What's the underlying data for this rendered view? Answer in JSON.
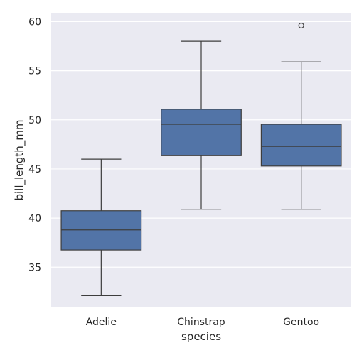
{
  "chart_data": {
    "type": "box",
    "xlabel": "species",
    "ylabel": "bill_length_mm",
    "ylim": [
      30.9,
      60.9
    ],
    "yticks": [
      35,
      40,
      45,
      50,
      55,
      60
    ],
    "categories": [
      "Adelie",
      "Chinstrap",
      "Gentoo"
    ],
    "boxes": [
      {
        "category": "Adelie",
        "whisker_low": 32.1,
        "q1": 36.75,
        "median": 38.8,
        "q3": 40.75,
        "whisker_high": 46.0,
        "outliers": []
      },
      {
        "category": "Chinstrap",
        "whisker_low": 40.9,
        "q1": 46.35,
        "median": 49.55,
        "q3": 51.08,
        "whisker_high": 58.0,
        "outliers": []
      },
      {
        "category": "Gentoo",
        "whisker_low": 40.9,
        "q1": 45.3,
        "median": 47.3,
        "q3": 49.55,
        "whisker_high": 55.9,
        "outliers": [
          59.6
        ]
      }
    ],
    "grid": true,
    "colors": {
      "box_fill": "#5274a7",
      "line": "#3d3d3d",
      "background": "#eaeaf2",
      "grid": "#ffffff"
    }
  }
}
